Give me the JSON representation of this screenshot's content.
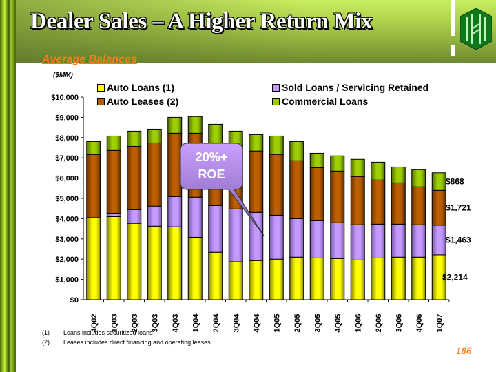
{
  "header": {
    "title": "Dealer Sales – A Higher Return Mix"
  },
  "subtitle": "Average Balances",
  "units": "($MM)",
  "callout": {
    "line1": "20%+",
    "line2": "ROE"
  },
  "footnotes": [
    {
      "marker": "(1)",
      "text": "Loans includes securitized loans"
    },
    {
      "marker": "(2)",
      "text": "Leases includes direct financing and operating leases"
    }
  ],
  "page_number": "186",
  "chart_data": {
    "type": "bar",
    "stacked": true,
    "categories": [
      "4Q02",
      "1Q03",
      "2Q03",
      "3Q03",
      "4Q03",
      "1Q04",
      "2Q04",
      "3Q04",
      "4Q04",
      "1Q05",
      "2Q05",
      "3Q05",
      "4Q05",
      "1Q06",
      "2Q06",
      "3Q06",
      "4Q06",
      "1Q07"
    ],
    "series": [
      {
        "name": "Auto Loans (1)",
        "color": "#ffff00",
        "values": [
          4050,
          4100,
          3770,
          3630,
          3600,
          3080,
          2340,
          1870,
          1930,
          2000,
          2100,
          2060,
          2030,
          1960,
          2060,
          2100,
          2100,
          2214
        ]
      },
      {
        "name": "Sold Loans / Servicing Retained",
        "color": "#c49aff",
        "values": [
          0,
          170,
          670,
          990,
          1490,
          1980,
          2310,
          2610,
          2380,
          2170,
          1900,
          1840,
          1770,
          1740,
          1670,
          1630,
          1600,
          1463
        ]
      },
      {
        "name": "Auto Leases (2)",
        "color": "#b85c00",
        "values": [
          3120,
          3100,
          3130,
          3120,
          3130,
          3160,
          3090,
          3120,
          3030,
          3000,
          2860,
          2620,
          2550,
          2380,
          2180,
          2040,
          1870,
          1721
        ]
      },
      {
        "name": "Commercial Loans",
        "color": "#99cc00",
        "values": [
          640,
          710,
          750,
          680,
          780,
          820,
          920,
          720,
          810,
          910,
          950,
          710,
          750,
          850,
          880,
          780,
          850,
          868
        ]
      }
    ],
    "data_labels": [
      "$2,214",
      "$1,463",
      "$1,721",
      "$868"
    ],
    "yticks": [
      "$0",
      "$1,000",
      "$2,000",
      "$3,000",
      "$4,000",
      "$5,000",
      "$6,000",
      "$7,000",
      "$8,000",
      "$9,000",
      "$10,000"
    ],
    "ylim": [
      0,
      10000
    ],
    "grid": false,
    "legend_placement": "top"
  }
}
